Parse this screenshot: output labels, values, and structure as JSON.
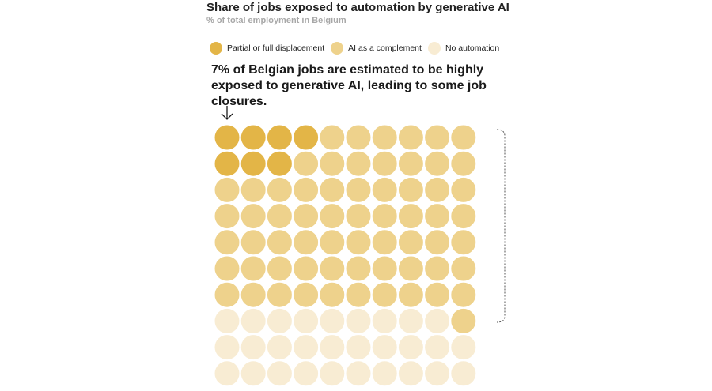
{
  "title": "Share of jobs exposed to automation by generative AI",
  "subtitle": "% of total employment in Belgium",
  "legend": [
    {
      "label": "Partial or full displacement",
      "color": "#e3b547"
    },
    {
      "label": "AI as a complement",
      "color": "#eed28c"
    },
    {
      "label": "No automation",
      "color": "#f8ecd3"
    }
  ],
  "annotation": "7% of Belgian jobs are estimated to be highly exposed to generative AI, leading to some job closures.",
  "chart_data": {
    "type": "waffle",
    "title": "Share of jobs exposed to automation by generative AI",
    "subtitle": "% of total employment in Belgium",
    "unit": "% of total employment",
    "grid": {
      "rows": 10,
      "cols": 10
    },
    "categories": [
      "Partial or full displacement",
      "AI as a complement",
      "No automation"
    ],
    "values": [
      7,
      63,
      30
    ],
    "colors": [
      "#e3b547",
      "#eed28c",
      "#f8ecd3"
    ],
    "fill_order": "row-major from top-left"
  }
}
